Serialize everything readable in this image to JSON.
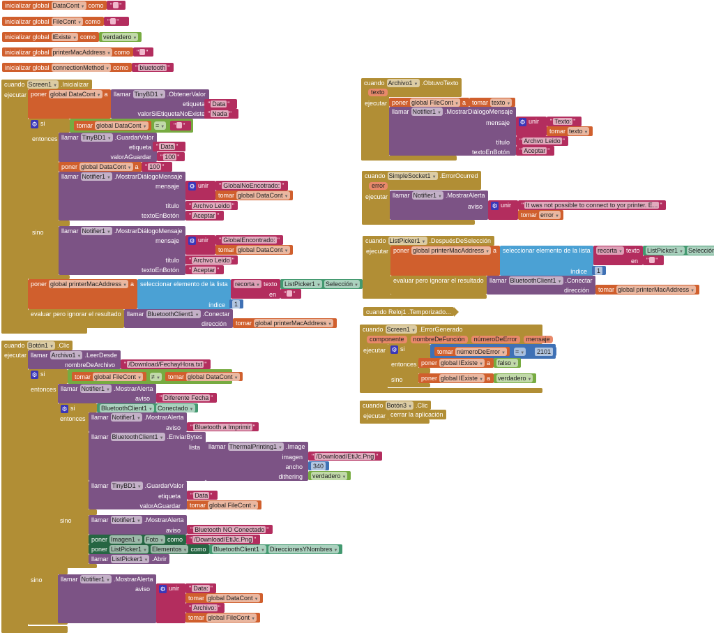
{
  "colors": {
    "mu": "#b18e35",
    "or": "#d05f2d",
    "pu": "#7c5385",
    "mg": "#b32d5e",
    "gr": "#77ab41",
    "lb": "#4ba1d4",
    "nb": "#3f71b5",
    "dg": "#266643",
    "tl": "#439970"
  },
  "w": {
    "cuando": "cuando",
    "ejecutar": "ejecutar",
    "poner": "poner",
    "a": "a",
    "llamar": "llamar",
    "tomar": "tomar",
    "si": "si",
    "entonces": "entonces",
    "sino": "sino",
    "unir": "unir",
    "como": "como",
    "etiqueta": "etiqueta",
    "valorSi": "valorSiEtiquetaNoExiste",
    "valorA": "valorAGuardar",
    "mensaje": "mensaje",
    "titulo": "título",
    "textoBtn": "textoEnBotón",
    "aviso": "aviso",
    "sel": "seleccionar elemento de la lista",
    "recorta": "recorta",
    "texto": "texto",
    "en": "en",
    "indice": "índice",
    "evaluar": "evaluar pero ignorar el resultado",
    "direccion": "dirección",
    "eq": "=",
    "neq": "≠",
    "lista": "lista",
    "imagen": "imagen",
    "ancho": "ancho",
    "dithering": "dithering",
    "nombreArch": "nombreDeArchivo",
    "init": "inicializar global"
  },
  "g": {
    "DataCont": "DataCont",
    "FileCont": "FileCont",
    "lExiste": "lExiste",
    "mac": "printerMacAddress",
    "conn": "connectionMethod"
  },
  "c": {
    "Screen1": "Screen1",
    "TinyBD1": "TinyBD1",
    "Notifier1": "Notifier1",
    "ListPicker1": "ListPicker1",
    "BT": "BluetoothClient1",
    "Archivo1": "Archivo1",
    "Boton1": "Botón1",
    "Boton3": "Botón3",
    "Thermal": "ThermalPrinting1",
    "Imagen1": "Imagen1",
    "SimpleSocket1": "SimpleSocket1"
  },
  "m": {
    "init": ".Inicializar",
    "obtener": ".ObtenerValor",
    "guardar": ".GuardarValor",
    "dialogo": ".MostrarDiálogoMensaje",
    "alerta": ".MostrarAlerta",
    "conectar": ".Conectar",
    "clic": ".Clic",
    "leer": ".LeerDesde",
    "enviar": ".EnviarBytes",
    "image": ".Image",
    "abrir": ".Abrir",
    "obtuvo": ".ObtuvoTexto",
    "errOc": ".ErrorOcurred",
    "despues": ".DespuésDeSelección",
    "reloj": "cuando  Reloj1 .Temporizado...",
    "errGen": ".ErrorGenerado",
    "seleccion": "Selección",
    "conectado": "Conectado",
    "foto": "Foto",
    "elementos": "Elementos",
    "dirs": "DireccionesYNombres",
    "cerrar": "cerrar la aplicación"
  },
  "v": {
    "DataCont": "global DataCont",
    "FileCont": "global FileCont",
    "lExiste": "global lExiste",
    "mac": "global printerMacAddress",
    "texto": "texto",
    "error": "error",
    "numErr": "númeroDeError"
  },
  "s": {
    "Data": "Data",
    "Nada": "Nada",
    "100": "100",
    "gne": "GlobalNoEncotrado:",
    "ge": "GlobalEncontrado:",
    "leido": "Archvo Leido",
    "aceptar": "Aceptar",
    "fecha": "/Download/FechayHora.txt",
    "dif": "Diferente Fecha",
    "btImp": "Bluetooth a Imprimir",
    "png": "/Download/EtiJc.Png",
    "btNo": "Bluetooth NO Conectado",
    "dataC": "Data:",
    "archC": "Archivo:",
    "textoC": "Texto:",
    "err": "It was not possible to connect to yor printer. E...",
    "bluetooth": "bluetooth"
  },
  "n": {
    "one": "1",
    "w340": "340",
    "e2101": "2101"
  },
  "b": {
    "verdadero": "verdadero",
    "falso": "falso"
  },
  "params": {
    "texto": "texto",
    "error": "error",
    "componente": "componente",
    "nombreDeFuncion": "nombreDeFunción",
    "numeroDeError": "númeroDeError",
    "mensaje": "mensaje"
  }
}
